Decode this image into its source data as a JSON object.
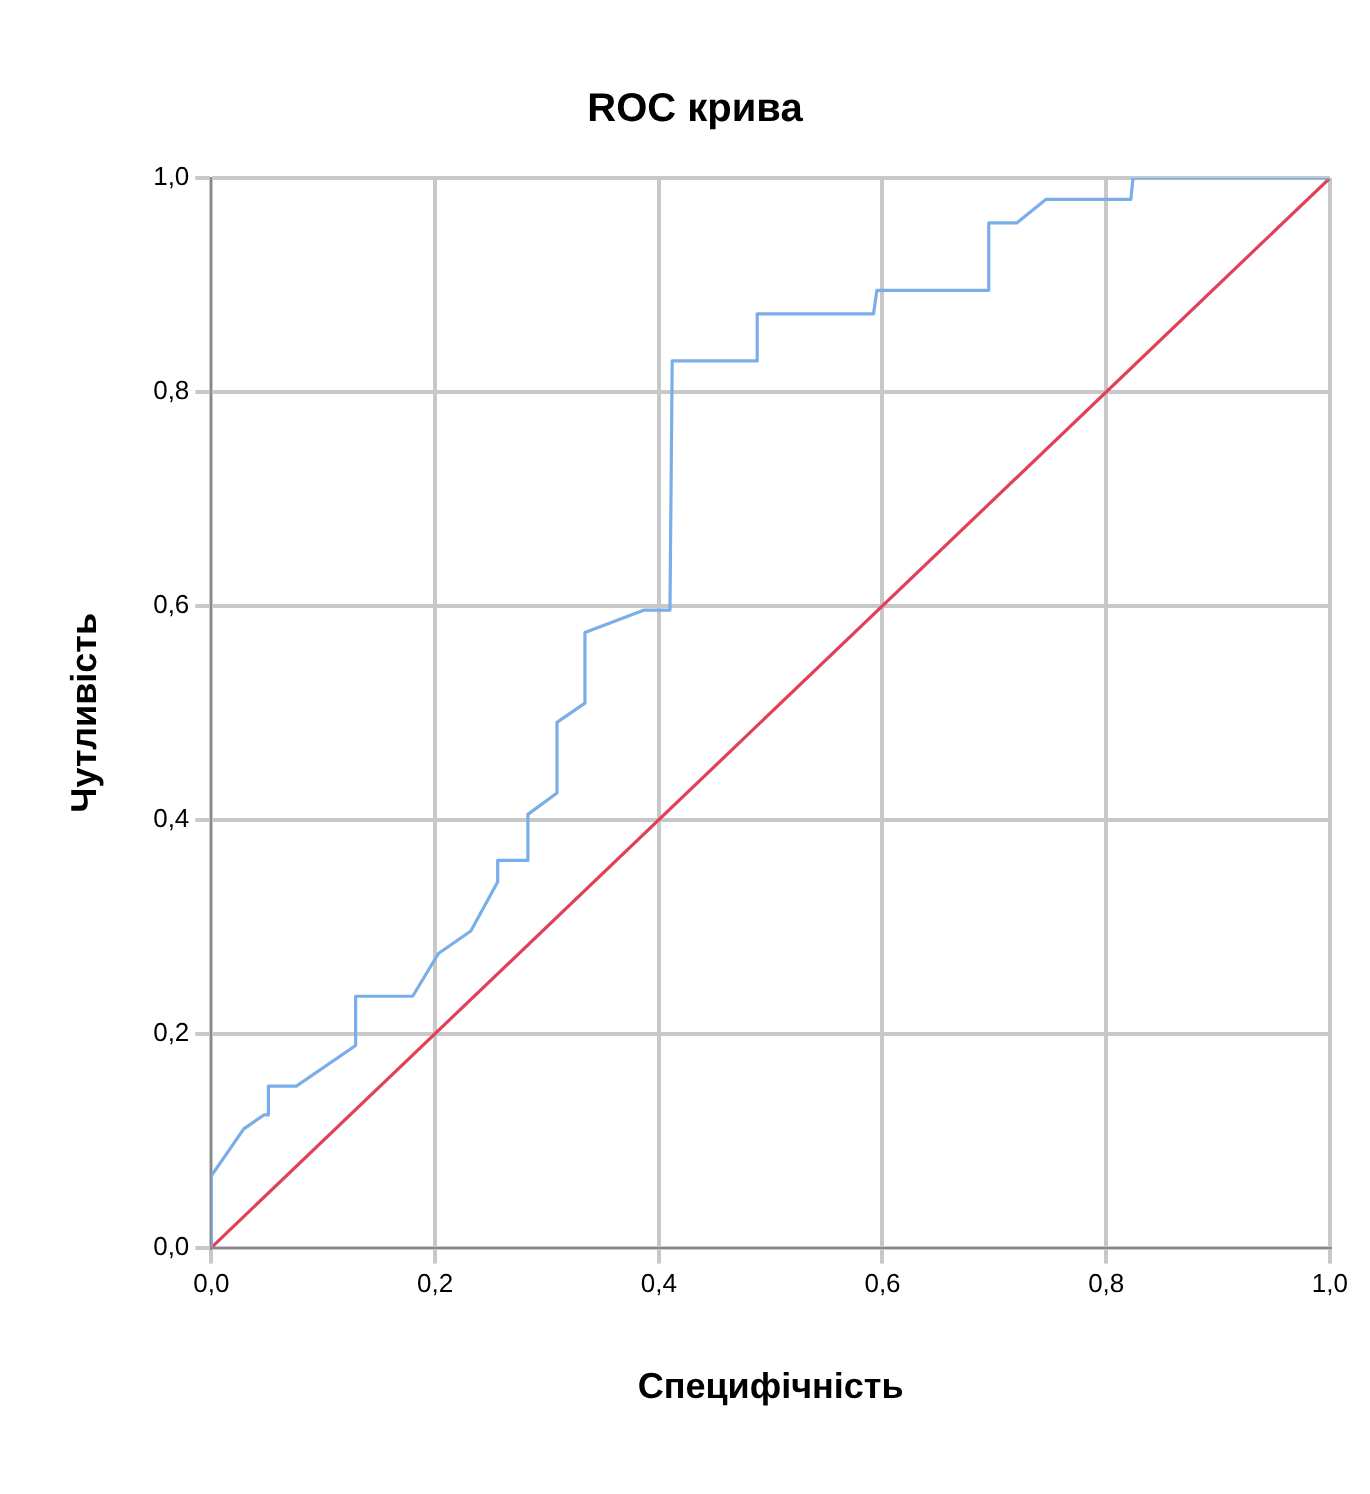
{
  "chart_data": {
    "type": "line",
    "title": "ROC крива",
    "xlabel": "Специфічність",
    "ylabel": "Чутливість",
    "xlim": [
      0,
      1
    ],
    "ylim": [
      0,
      1
    ],
    "xticks": [
      {
        "value": 0,
        "label": "0,0"
      },
      {
        "value": 0.2,
        "label": "0,2"
      },
      {
        "value": 0.4,
        "label": "0,4"
      },
      {
        "value": 0.6,
        "label": "0,6"
      },
      {
        "value": 0.8,
        "label": "0,8"
      },
      {
        "value": 1,
        "label": "1,0"
      }
    ],
    "yticks": [
      {
        "value": 0,
        "label": "0,0"
      },
      {
        "value": 0.2,
        "label": "0,2"
      },
      {
        "value": 0.4,
        "label": "0,4"
      },
      {
        "value": 0.6,
        "label": "0,6"
      },
      {
        "value": 0.8,
        "label": "0,8"
      },
      {
        "value": 1,
        "label": "1,0"
      }
    ],
    "grid": true,
    "legend": false,
    "marker": "none",
    "line_style": "solid",
    "series": [
      {
        "color": "#7aaee8",
        "x": [
          0,
          0,
          0.029,
          0.047,
          0.051,
          0.051,
          0.076,
          0.129,
          0.129,
          0.18,
          0.203,
          0.232,
          0.256,
          0.256,
          0.283,
          0.283,
          0.309,
          0.309,
          0.334,
          0.334,
          0.387,
          0.41,
          0.412,
          0.488,
          0.488,
          0.592,
          0.595,
          0.695,
          0.695,
          0.72,
          0.746,
          0.822,
          0.824,
          1
        ],
        "values": [
          0,
          0.067,
          0.111,
          0.124,
          0.124,
          0.151,
          0.151,
          0.189,
          0.235,
          0.235,
          0.275,
          0.296,
          0.342,
          0.362,
          0.362,
          0.405,
          0.425,
          0.491,
          0.509,
          0.575,
          0.596,
          0.596,
          0.829,
          0.829,
          0.873,
          0.873,
          0.895,
          0.895,
          0.958,
          0.958,
          0.98,
          0.98,
          1,
          1
        ]
      },
      {
        "color": "#e0405a",
        "x": [
          0,
          1
        ],
        "values": [
          0,
          1
        ]
      }
    ]
  }
}
